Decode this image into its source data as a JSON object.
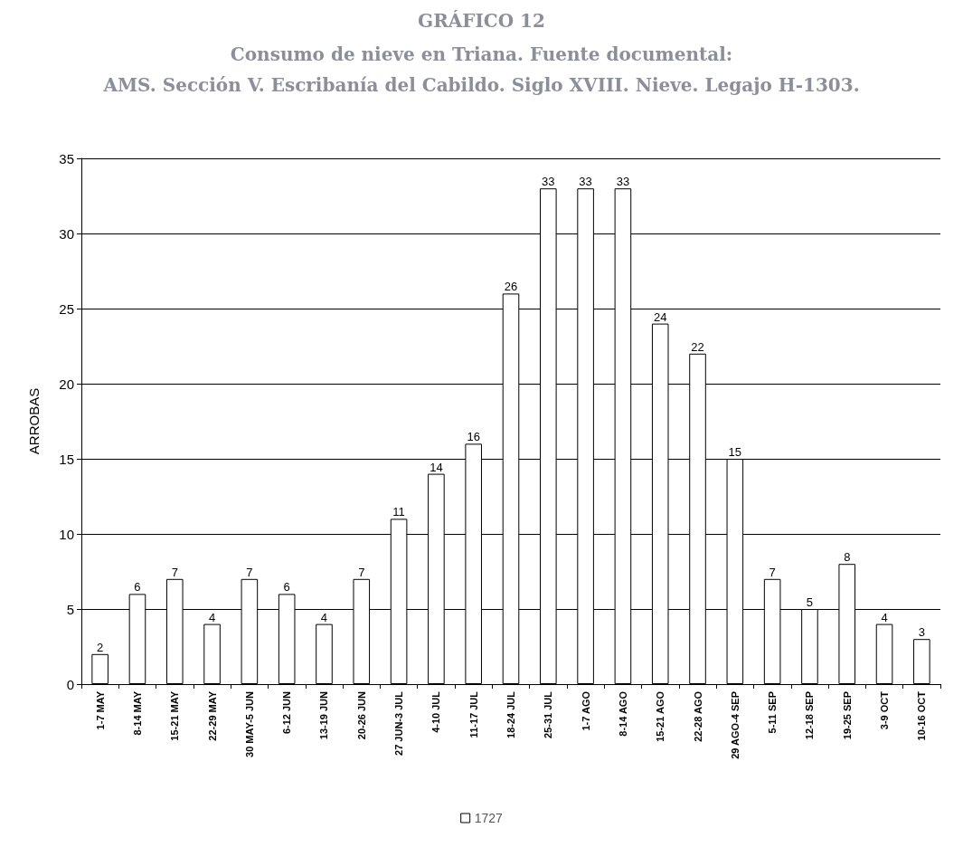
{
  "chart_data": {
    "type": "bar",
    "title": "GRÁFICO 12",
    "subtitle": "Consumo de nieve en Triana. Fuente documental:\nAMS. Sección V. Escribanía del Cabildo. Siglo XVIII. Nieve. Legajo H-1303.",
    "ylabel": "ARROBAS",
    "categories": [
      "1-7 MAY",
      "8-14 MAY",
      "15-21 MAY",
      "22-29 MAY",
      "30 MAY-5 JUN",
      "6-12 JUN",
      "13-19 JUN",
      "20-26 JUN",
      "27 JUN-3 JUL",
      "4-10 JUL",
      "11-17 JUL",
      "18-24 JUL",
      "25-31 JUL",
      "1-7 AGO",
      "8-14 AGO",
      "15-21 AGO",
      "22-28 AGO",
      "29 AGO-4 SEP",
      "5-11 SEP",
      "12-18 SEP",
      "19-25 SEP",
      "3-9 OCT",
      "10-16 OCT"
    ],
    "series": [
      {
        "name": "1727",
        "color": "#ffffff",
        "values": [
          2,
          6,
          7,
          4,
          7,
          6,
          4,
          7,
          11,
          14,
          16,
          26,
          33,
          33,
          33,
          24,
          22,
          15,
          7,
          5,
          8,
          4,
          3
        ]
      }
    ],
    "ylim": [
      0,
      35
    ],
    "yticks": [
      0,
      5,
      10,
      15,
      20,
      25,
      30,
      35
    ],
    "grid": "y",
    "legend": "bottom",
    "data_labels": true
  }
}
